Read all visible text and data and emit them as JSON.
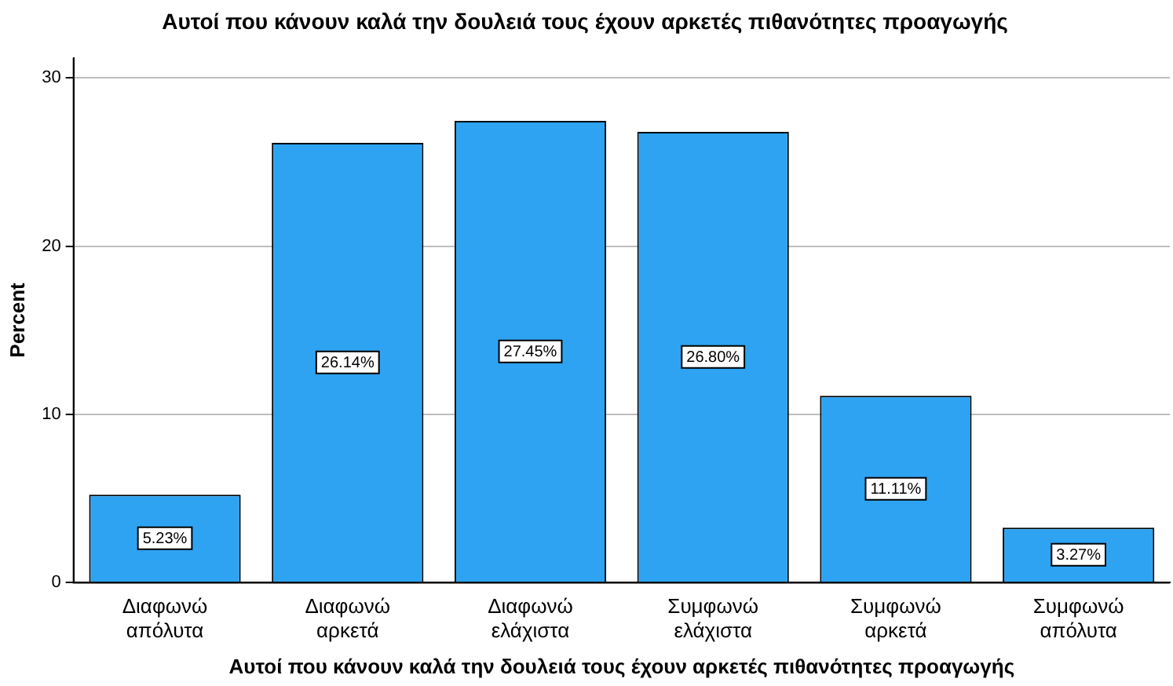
{
  "chart_data": {
    "type": "bar",
    "title": "Αυτοί που κάνουν καλά την δουλειά τους έχουν αρκετές πιθανότητες προαγωγής",
    "xlabel": "Αυτοί που κάνουν καλά την δουλειά τους έχουν αρκετές πιθανότητες προαγωγής",
    "ylabel": "Percent",
    "categories": [
      "Διαφωνώ απόλυτα",
      "Διαφωνώ αρκετά",
      "Διαφωνώ ελάχιστα",
      "Συμφωνώ ελάχιστα",
      "Συμφωνώ αρκετά",
      "Συμφωνώ απόλυτα"
    ],
    "values": [
      5.23,
      26.14,
      27.45,
      26.8,
      11.11,
      3.27
    ],
    "value_labels": [
      "5.23%",
      "26.14%",
      "27.45%",
      "26.80%",
      "11.11%",
      "3.27%"
    ],
    "color": "#2ea3f2",
    "ylim": [
      0,
      31.2
    ],
    "yticks": [
      0,
      10,
      20,
      30
    ],
    "grid": "y",
    "legend": false
  }
}
